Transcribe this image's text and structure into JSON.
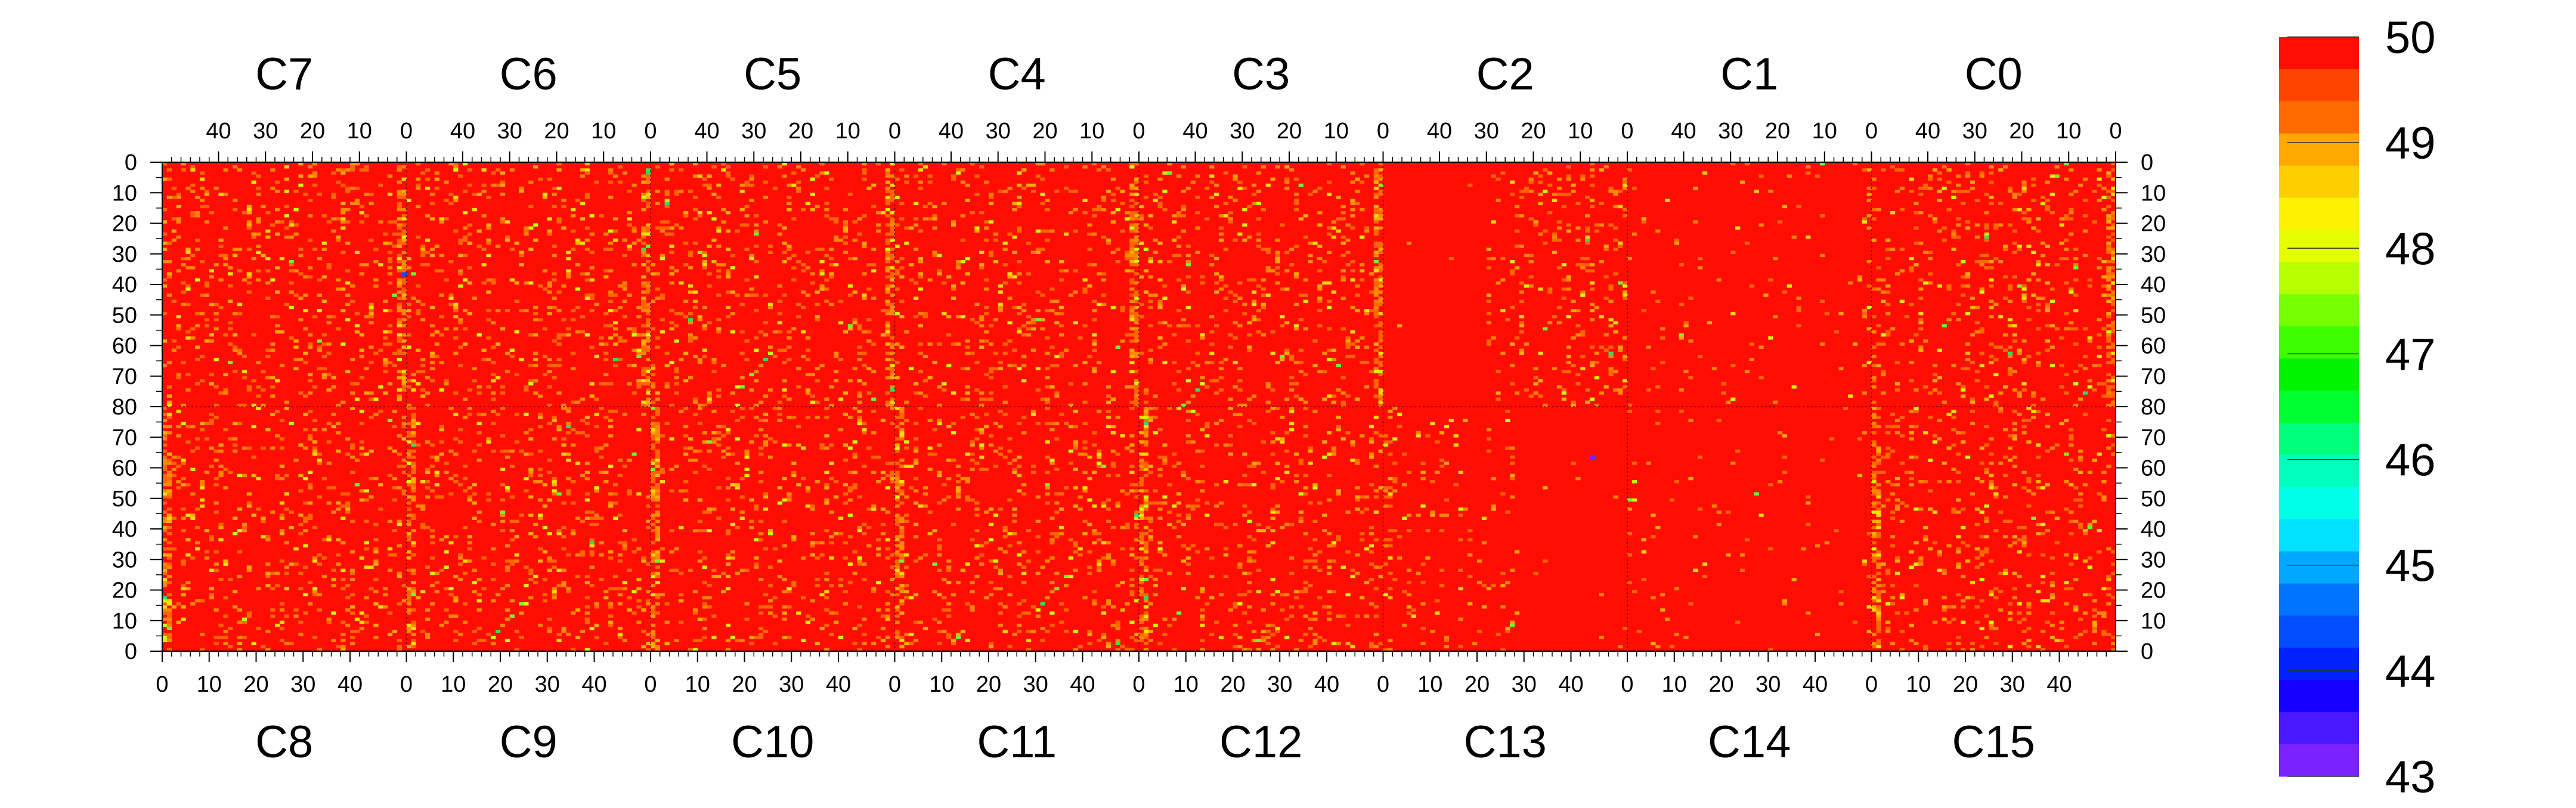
{
  "chart_data": {
    "type": "heatmap",
    "title": "",
    "xlabel": "",
    "ylabel": "",
    "columns_per_chip": 52,
    "rows_per_half": 80,
    "top_chips": [
      "C7",
      "C6",
      "C5",
      "C4",
      "C3",
      "C2",
      "C1",
      "C0"
    ],
    "bottom_chips": [
      "C8",
      "C9",
      "C10",
      "C11",
      "C12",
      "C13",
      "C14",
      "C15"
    ],
    "top_x_ticks": [
      "40",
      "30",
      "20",
      "10",
      "0"
    ],
    "top_x_tick_values": [
      40,
      30,
      20,
      10,
      0
    ],
    "bottom_x_ticks": [
      "0",
      "10",
      "20",
      "30",
      "40"
    ],
    "bottom_x_tick_values": [
      0,
      10,
      20,
      30,
      40
    ],
    "y_ticks_top_half": [
      "0",
      "10",
      "20",
      "30",
      "40",
      "50",
      "60",
      "70",
      "80"
    ],
    "y_ticks_bottom_half": [
      "70",
      "60",
      "50",
      "40",
      "30",
      "20",
      "10",
      "0"
    ],
    "y_tick_values_top_half": [
      0,
      10,
      20,
      30,
      40,
      50,
      60,
      70,
      80
    ],
    "y_tick_values_bottom_half": [
      70,
      60,
      50,
      40,
      30,
      20,
      10,
      0
    ],
    "zlim": [
      43,
      50
    ],
    "colorbar_ticks": [
      "50",
      "49",
      "48",
      "47",
      "46",
      "45",
      "44",
      "43"
    ],
    "colorbar_tick_values": [
      50,
      49,
      48,
      47,
      46,
      45,
      44,
      43
    ],
    "colorbar_colors": [
      "#ff0d00",
      "#ff4400",
      "#ff6a00",
      "#ffa800",
      "#ffce00",
      "#fff200",
      "#e4ff00",
      "#b4ff00",
      "#76ff00",
      "#3cff00",
      "#00f400",
      "#00ff2e",
      "#00ff7a",
      "#00ffbe",
      "#00ffe8",
      "#00e2ff",
      "#00a8ff",
      "#0074ff",
      "#004eff",
      "#0022ff",
      "#1400ff",
      "#4a18ff",
      "#7a22ff"
    ],
    "dominant_value": 50,
    "dominant_color": "#ff0d00",
    "noise_colors": [
      "#ff6600",
      "#ff8800",
      "#ffaa00",
      "#ffdd00",
      "#ccff00",
      "#66ff33",
      "#33dd66"
    ],
    "edge_column_dense_noise": true,
    "low_noise_chips": [
      "C2",
      "C1",
      "C13",
      "C14"
    ],
    "low_value_outliers": [
      {
        "chip": "C7",
        "half": "top",
        "column": 0,
        "row": 36,
        "value": 44.5
      },
      {
        "chip": "C13",
        "half": "bottom",
        "column": 44,
        "row": 63,
        "value": 43
      }
    ],
    "legend_position": "right"
  }
}
